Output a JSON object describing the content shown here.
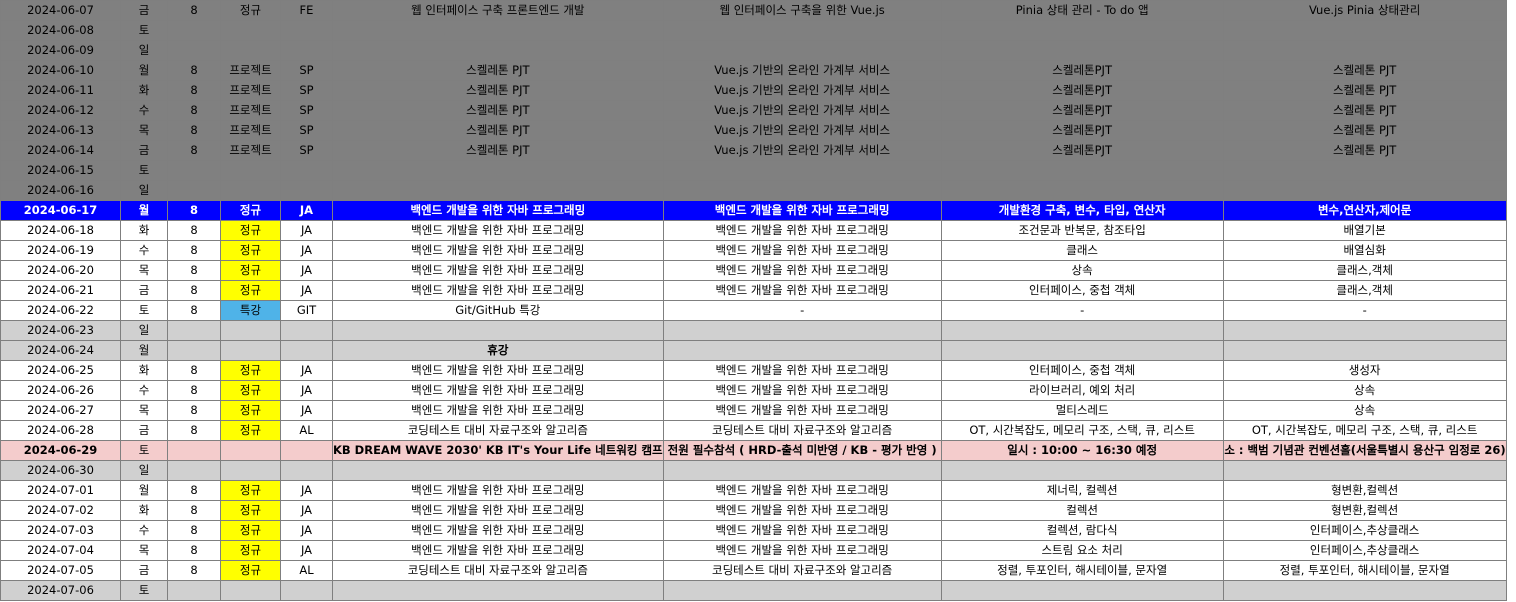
{
  "rows": [
    {
      "style": "dark",
      "date": "2024-06-07",
      "day": "금",
      "hours": "8",
      "type": "정규",
      "code": "FE",
      "course": "웹 인터페이스 구축 프론트엔드 개발",
      "unit": "웹 인터페이스 구축을 위한 Vue.js",
      "topic1": "Pinia 상태 관리 - To do 앱",
      "topic2": "Vue.js Pinia 상태관리"
    },
    {
      "style": "dark",
      "date": "2024-06-08",
      "day": "토",
      "hours": "",
      "type": "",
      "code": "",
      "course": "",
      "unit": "",
      "topic1": "",
      "topic2": ""
    },
    {
      "style": "dark",
      "date": "2024-06-09",
      "day": "일",
      "hours": "",
      "type": "",
      "code": "",
      "course": "",
      "unit": "",
      "topic1": "",
      "topic2": ""
    },
    {
      "style": "dark",
      "date": "2024-06-10",
      "day": "월",
      "hours": "8",
      "type": "프로젝트",
      "code": "SP",
      "course": "스켈레톤 PJT",
      "unit": "Vue.js 기반의 온라인 가계부 서비스",
      "topic1": "스켈레톤PJT",
      "topic2": "스켈레톤 PJT"
    },
    {
      "style": "dark",
      "date": "2024-06-11",
      "day": "화",
      "hours": "8",
      "type": "프로젝트",
      "code": "SP",
      "course": "스켈레톤 PJT",
      "unit": "Vue.js 기반의 온라인 가계부 서비스",
      "topic1": "스켈레톤PJT",
      "topic2": "스켈레톤 PJT"
    },
    {
      "style": "dark",
      "date": "2024-06-12",
      "day": "수",
      "hours": "8",
      "type": "프로젝트",
      "code": "SP",
      "course": "스켈레톤 PJT",
      "unit": "Vue.js 기반의 온라인 가계부 서비스",
      "topic1": "스켈레톤PJT",
      "topic2": "스켈레톤 PJT"
    },
    {
      "style": "dark",
      "date": "2024-06-13",
      "day": "목",
      "hours": "8",
      "type": "프로젝트",
      "code": "SP",
      "course": "스켈레톤 PJT",
      "unit": "Vue.js 기반의 온라인 가계부 서비스",
      "topic1": "스켈레톤PJT",
      "topic2": "스켈레톤 PJT"
    },
    {
      "style": "dark",
      "date": "2024-06-14",
      "day": "금",
      "hours": "8",
      "type": "프로젝트",
      "code": "SP",
      "course": "스켈레톤 PJT",
      "unit": "Vue.js 기반의 온라인 가계부 서비스",
      "topic1": "스켈레톤PJT",
      "topic2": "스켈레톤 PJT"
    },
    {
      "style": "dark",
      "date": "2024-06-15",
      "day": "토",
      "hours": "",
      "type": "",
      "code": "",
      "course": "",
      "unit": "",
      "topic1": "",
      "topic2": ""
    },
    {
      "style": "dark",
      "date": "2024-06-16",
      "day": "일",
      "hours": "",
      "type": "",
      "code": "",
      "course": "",
      "unit": "",
      "topic1": "",
      "topic2": ""
    },
    {
      "style": "blue",
      "date": "2024-06-17",
      "day": "월",
      "hours": "8",
      "type": "정규",
      "code": "JA",
      "course": "백엔드 개발을 위한 자바 프로그래밍",
      "unit": "백엔드 개발을 위한 자바 프로그래밍",
      "topic1": "개발환경 구축, 변수, 타입, 연산자",
      "topic2": "변수,연산자,제어문"
    },
    {
      "style": "white",
      "date": "2024-06-18",
      "day": "화",
      "hours": "8",
      "type": "정규",
      "typeColor": "yellow",
      "code": "JA",
      "course": "백엔드 개발을 위한 자바 프로그래밍",
      "unit": "백엔드 개발을 위한 자바 프로그래밍",
      "topic1": "조건문과 반복문, 참조타입",
      "topic2": "배열기본"
    },
    {
      "style": "white",
      "date": "2024-06-19",
      "day": "수",
      "hours": "8",
      "type": "정규",
      "typeColor": "yellow",
      "code": "JA",
      "course": "백엔드 개발을 위한 자바 프로그래밍",
      "unit": "백엔드 개발을 위한 자바 프로그래밍",
      "topic1": "클래스",
      "topic2": "배열심화"
    },
    {
      "style": "white",
      "date": "2024-06-20",
      "day": "목",
      "hours": "8",
      "type": "정규",
      "typeColor": "yellow",
      "code": "JA",
      "course": "백엔드 개발을 위한 자바 프로그래밍",
      "unit": "백엔드 개발을 위한 자바 프로그래밍",
      "topic1": "상속",
      "topic2": "클래스,객체"
    },
    {
      "style": "white",
      "date": "2024-06-21",
      "day": "금",
      "hours": "8",
      "type": "정규",
      "typeColor": "yellow",
      "code": "JA",
      "course": "백엔드 개발을 위한 자바 프로그래밍",
      "unit": "백엔드 개발을 위한 자바 프로그래밍",
      "topic1": "인터페이스, 중첩 객체",
      "topic2": "클래스,객체"
    },
    {
      "style": "white",
      "date": "2024-06-22",
      "day": "토",
      "hours": "8",
      "type": "특강",
      "typeColor": "cyan",
      "code": "GIT",
      "course": "Git/GitHub 특강",
      "unit": "-",
      "topic1": "-",
      "topic2": "-"
    },
    {
      "style": "light",
      "date": "2024-06-23",
      "day": "일",
      "hours": "",
      "type": "",
      "code": "",
      "course": "",
      "unit": "",
      "topic1": "",
      "topic2": ""
    },
    {
      "style": "light",
      "date": "2024-06-24",
      "day": "월",
      "hours": "",
      "type": "",
      "code": "",
      "course": "휴강",
      "courseBold": true,
      "unit": "",
      "topic1": "",
      "topic2": ""
    },
    {
      "style": "white",
      "date": "2024-06-25",
      "day": "화",
      "hours": "8",
      "type": "정규",
      "typeColor": "yellow",
      "code": "JA",
      "course": "백엔드 개발을 위한 자바 프로그래밍",
      "unit": "백엔드 개발을 위한 자바 프로그래밍",
      "topic1": "인터페이스, 중첩 객체",
      "topic2": "생성자"
    },
    {
      "style": "white",
      "date": "2024-06-26",
      "day": "수",
      "hours": "8",
      "type": "정규",
      "typeColor": "yellow",
      "code": "JA",
      "course": "백엔드 개발을 위한 자바 프로그래밍",
      "unit": "백엔드 개발을 위한 자바 프로그래밍",
      "topic1": "라이브러리, 예외 처리",
      "topic2": "상속"
    },
    {
      "style": "white",
      "date": "2024-06-27",
      "day": "목",
      "hours": "8",
      "type": "정규",
      "typeColor": "yellow",
      "code": "JA",
      "course": "백엔드 개발을 위한 자바 프로그래밍",
      "unit": "백엔드 개발을 위한 자바 프로그래밍",
      "topic1": "멀티스레드",
      "topic2": "상속"
    },
    {
      "style": "white",
      "date": "2024-06-28",
      "day": "금",
      "hours": "8",
      "type": "정규",
      "typeColor": "yellow",
      "code": "AL",
      "course": "코딩테스트 대비 자료구조와 알고리즘",
      "unit": "코딩테스트 대비 자료구조와 알고리즘",
      "topic1": "OT, 시간복잡도, 메모리 구조, 스택, 큐, 리스트",
      "topic2": "OT, 시간복잡도, 메모리 구조, 스택, 큐, 리스트"
    },
    {
      "style": "pink",
      "date": "2024-06-29",
      "day": "토",
      "hours": "",
      "type": "",
      "code": "",
      "course": "KB DREAM WAVE 2030' KB IT's Your Life 네트워킹 캠프",
      "unit": "전원 필수참석 ( HRD-출석 미반영 / KB - 평가 반영 )",
      "topic1": "일시 : 10:00 ~ 16:30 예정",
      "topic2": "소 : 백범 기념관 컨벤션홀(서울특별시 용산구 임정로 26)",
      "allBold": true
    },
    {
      "style": "light",
      "date": "2024-06-30",
      "day": "일",
      "hours": "",
      "type": "",
      "code": "",
      "course": "",
      "unit": "",
      "topic1": "",
      "topic2": ""
    },
    {
      "style": "white",
      "date": "2024-07-01",
      "day": "월",
      "hours": "8",
      "type": "정규",
      "typeColor": "yellow",
      "code": "JA",
      "course": "백엔드 개발을 위한 자바 프로그래밍",
      "unit": "백엔드 개발을 위한 자바 프로그래밍",
      "topic1": "제너릭, 컬렉션",
      "topic2": "형변환,컬렉션"
    },
    {
      "style": "white",
      "date": "2024-07-02",
      "day": "화",
      "hours": "8",
      "type": "정규",
      "typeColor": "yellow",
      "code": "JA",
      "course": "백엔드 개발을 위한 자바 프로그래밍",
      "unit": "백엔드 개발을 위한 자바 프로그래밍",
      "topic1": "컬렉션",
      "topic2": "형변환,컬렉션"
    },
    {
      "style": "white",
      "date": "2024-07-03",
      "day": "수",
      "hours": "8",
      "type": "정규",
      "typeColor": "yellow",
      "code": "JA",
      "course": "백엔드 개발을 위한 자바 프로그래밍",
      "unit": "백엔드 개발을 위한 자바 프로그래밍",
      "topic1": "컬렉션, 람다식",
      "topic2": "인터페이스,추상클래스"
    },
    {
      "style": "white",
      "date": "2024-07-04",
      "day": "목",
      "hours": "8",
      "type": "정규",
      "typeColor": "yellow",
      "code": "JA",
      "course": "백엔드 개발을 위한 자바 프로그래밍",
      "unit": "백엔드 개발을 위한 자바 프로그래밍",
      "topic1": "스트림 요소 처리",
      "topic2": "인터페이스,추상클래스"
    },
    {
      "style": "white",
      "date": "2024-07-05",
      "day": "금",
      "hours": "8",
      "type": "정규",
      "typeColor": "yellow",
      "code": "AL",
      "course": "코딩테스트 대비 자료구조와 알고리즘",
      "unit": "코딩테스트 대비 자료구조와 알고리즘",
      "topic1": "정렬, 투포인터, 해시테이블, 문자열",
      "topic2": "정렬, 투포인터, 해시테이블, 문자열"
    },
    {
      "style": "light",
      "date": "2024-07-06",
      "day": "토",
      "hours": "",
      "type": "",
      "code": "",
      "course": "",
      "unit": "",
      "topic1": "",
      "topic2": ""
    }
  ],
  "colors": {
    "dark_row": "#808080",
    "light_row": "#d0d0d0",
    "highlight_row": "#0000ff",
    "event_row": "#f4cccc",
    "regular_badge": "#ffff00",
    "special_badge": "#4fb3e8"
  }
}
